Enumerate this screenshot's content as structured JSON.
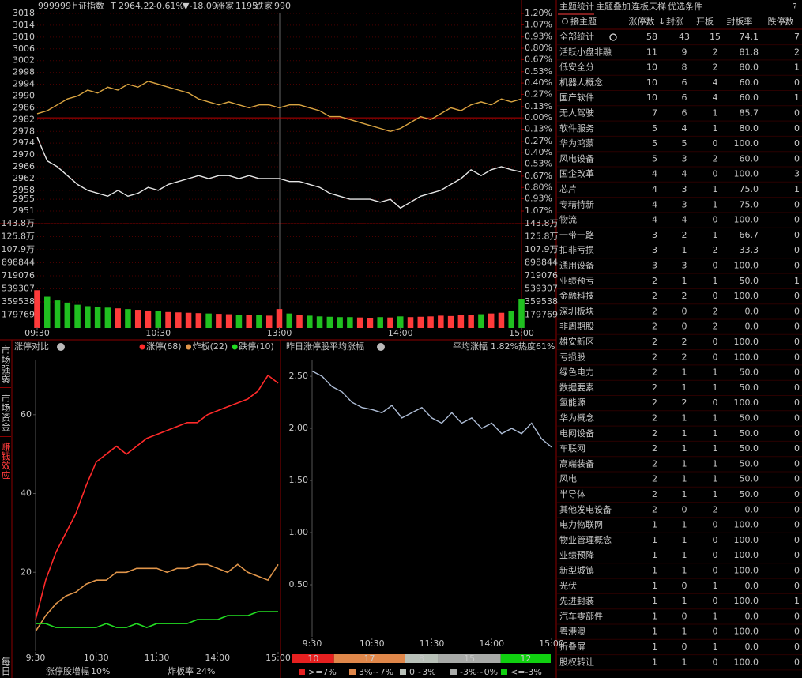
{
  "header": {
    "code": "999999",
    "name": "上证指数",
    "flag": "T",
    "price": "2964.22",
    "pct": "-0.61%",
    "change": "▼-18.09",
    "up_label": "涨家",
    "up_count": "1195",
    "down_label": "跌家",
    "down_count": "990"
  },
  "sidebar_tabs": [
    "市场强弱",
    "市场资金",
    "赚钱效应",
    "每日"
  ],
  "chart_data": [
    {
      "type": "line",
      "x": [
        0,
        5,
        10,
        15,
        20,
        25,
        30,
        35,
        40,
        45,
        50,
        55,
        60,
        65,
        70,
        75,
        80,
        85,
        90,
        95,
        100,
        105,
        110,
        115,
        120,
        125,
        130,
        135,
        140,
        145,
        150,
        155,
        160,
        165,
        170,
        175,
        180,
        185,
        190,
        195,
        200,
        205,
        210,
        215,
        220,
        225,
        230,
        235,
        240
      ],
      "xlim": [
        0,
        240
      ],
      "series": [
        {
          "color": "#e6e6e6",
          "values": [
            2976,
            2968,
            2966,
            2963,
            2960,
            2958,
            2957,
            2956,
            2958,
            2956,
            2957,
            2959,
            2958,
            2960,
            2961,
            2962,
            2963,
            2962,
            2963,
            2963,
            2962,
            2963,
            2962,
            2962,
            2962,
            2961,
            2961,
            2960,
            2959,
            2957,
            2956,
            2955,
            2955,
            2955,
            2954,
            2955,
            2952,
            2954,
            2956,
            2957,
            2958,
            2960,
            2962,
            2965,
            2963,
            2965,
            2966,
            2965,
            2964.22
          ]
        },
        {
          "color": "#d9a441",
          "values": [
            2984,
            2985,
            2987,
            2989,
            2990,
            2992,
            2991,
            2993,
            2992,
            2994,
            2993,
            2995,
            2994,
            2993,
            2992,
            2991,
            2989,
            2988,
            2987,
            2988,
            2987,
            2986,
            2987,
            2987,
            2986,
            2987,
            2987,
            2986,
            2985,
            2983,
            2983,
            2982,
            2981,
            2980,
            2979,
            2978,
            2979,
            2981,
            2983,
            2982,
            2984,
            2986,
            2985,
            2987,
            2988,
            2987,
            2989,
            2988,
            2989
          ]
        }
      ],
      "ylim": [
        2951,
        3018
      ],
      "yticks": [
        3018,
        3014,
        3010,
        3006,
        3002,
        2998,
        2994,
        2990,
        2986,
        2982,
        2978,
        2974,
        2970,
        2966,
        2962,
        2958,
        2955,
        2951
      ],
      "y2lim": [
        -1.07,
        1.2
      ],
      "y2ticks": [
        {
          "value": 1.2,
          "label": "1.20%"
        },
        {
          "value": 1.07,
          "label": "1.07%"
        },
        {
          "value": 0.93,
          "label": "0.93%"
        },
        {
          "value": 0.8,
          "label": "0.80%"
        },
        {
          "value": 0.67,
          "label": "0.67%"
        },
        {
          "value": 0.53,
          "label": "0.53%"
        },
        {
          "value": 0.4,
          "label": "0.40%"
        },
        {
          "value": 0.27,
          "label": "0.27%"
        },
        {
          "value": 0.13,
          "label": "0.13%"
        },
        {
          "value": 0,
          "label": "0.00%"
        },
        {
          "value": -0.13,
          "label": "0.13%"
        },
        {
          "value": -0.27,
          "label": "0.27%"
        },
        {
          "value": -0.4,
          "label": "0.40%"
        },
        {
          "value": -0.53,
          "label": "0.53%"
        },
        {
          "value": -0.67,
          "label": "0.67%"
        },
        {
          "value": -0.8,
          "label": "0.80%"
        },
        {
          "value": -0.93,
          "label": "0.93%"
        },
        {
          "value": -1.07,
          "label": "1.07%"
        }
      ],
      "grid": true
    },
    {
      "type": "bar",
      "x": [
        0,
        5,
        10,
        15,
        20,
        25,
        30,
        35,
        40,
        45,
        50,
        55,
        60,
        65,
        70,
        75,
        80,
        85,
        90,
        95,
        100,
        105,
        110,
        115,
        120,
        125,
        130,
        135,
        140,
        145,
        150,
        155,
        160,
        165,
        170,
        175,
        180,
        185,
        190,
        195,
        200,
        205,
        210,
        215,
        220,
        225,
        230,
        235,
        240
      ],
      "xlim": [
        0,
        240
      ],
      "xticks": [
        {
          "value": 0,
          "label": "09:30"
        },
        {
          "value": 60,
          "label": "10:30"
        },
        {
          "value": 120,
          "label": "13:00"
        },
        {
          "value": 180,
          "label": "14:00"
        },
        {
          "value": 240,
          "label": "15:00"
        }
      ],
      "values": [
        520000,
        430000,
        380000,
        350000,
        320000,
        300000,
        290000,
        280000,
        270000,
        260000,
        250000,
        240000,
        230000,
        220000,
        215000,
        210000,
        205000,
        200000,
        195000,
        190000,
        185000,
        180000,
        175000,
        170000,
        260000,
        200000,
        180000,
        170000,
        160000,
        155000,
        150000,
        150000,
        145000,
        140000,
        150000,
        145000,
        160000,
        150000,
        155000,
        160000,
        170000,
        165000,
        180000,
        175000,
        190000,
        200000,
        210000,
        230000,
        400000
      ],
      "up_color": "#ff3b3b",
      "down_color": "#20c020",
      "ylim": [
        0,
        1438000
      ],
      "yticks": [
        {
          "value": 1438000,
          "label": "143.8万"
        },
        {
          "value": 1258000,
          "label": "125.8万"
        },
        {
          "value": 1079000,
          "label": "107.9万"
        },
        898844,
        719076,
        539307,
        359538,
        179769
      ]
    },
    {
      "type": "line",
      "title": "涨停对比",
      "x": [
        0,
        10,
        20,
        30,
        40,
        50,
        60,
        70,
        80,
        90,
        100,
        110,
        120,
        130,
        140,
        150,
        160,
        170,
        180,
        190,
        200,
        210,
        220,
        230,
        240
      ],
      "xlim": [
        0,
        240
      ],
      "xticks": [
        {
          "value": 0,
          "label": "9:30"
        },
        {
          "value": 60,
          "label": "10:30"
        },
        {
          "value": 120,
          "label": "11:30"
        },
        {
          "value": 180,
          "label": "14:00"
        },
        {
          "value": 240,
          "label": "15:00"
        }
      ],
      "ylim": [
        0,
        74
      ],
      "yticks": [
        20,
        40,
        60
      ],
      "series": [
        {
          "name": "涨停(68)",
          "color": "#ff2a2a",
          "values": [
            8,
            18,
            25,
            30,
            35,
            42,
            48,
            50,
            52,
            50,
            52,
            54,
            55,
            56,
            57,
            58,
            58,
            60,
            61,
            62,
            63,
            64,
            66,
            70,
            68
          ]
        },
        {
          "name": "炸板(22)",
          "color": "#e0954a",
          "values": [
            5,
            9,
            12,
            14,
            15,
            17,
            18,
            18,
            20,
            20,
            21,
            21,
            21,
            20,
            21,
            21,
            22,
            22,
            21,
            20,
            22,
            20,
            19,
            18,
            22
          ]
        },
        {
          "name": "跌停(10)",
          "color": "#22dd22",
          "values": [
            7,
            7,
            6,
            6,
            6,
            6,
            6,
            7,
            6,
            6,
            7,
            6,
            7,
            7,
            7,
            7,
            8,
            8,
            8,
            9,
            9,
            9,
            10,
            10,
            10
          ]
        }
      ],
      "footer": [
        {
          "label": "涨停股增幅",
          "value": "10%"
        },
        {
          "label": "炸板率",
          "value": "24%"
        }
      ]
    },
    {
      "type": "line",
      "title": "昨日涨停股平均涨幅",
      "x": [
        0,
        10,
        20,
        30,
        40,
        50,
        60,
        70,
        80,
        90,
        100,
        110,
        120,
        130,
        140,
        150,
        160,
        170,
        180,
        190,
        200,
        210,
        220,
        230,
        240
      ],
      "xlim": [
        0,
        240
      ],
      "xticks": [
        {
          "value": 0,
          "label": "9:30"
        },
        {
          "value": 60,
          "label": "10:30"
        },
        {
          "value": 120,
          "label": "11:30"
        },
        {
          "value": 180,
          "label": "14:00"
        },
        {
          "value": 240,
          "label": "15:00"
        }
      ],
      "ylim": [
        0,
        2.66
      ],
      "yticks": [
        {
          "value": 2.5,
          "label": "2.50"
        },
        {
          "value": 2,
          "label": "2.00"
        },
        {
          "value": 1.5,
          "label": "1.50"
        },
        {
          "value": 1,
          "label": "1.00"
        },
        {
          "value": 0.5,
          "label": "0.50"
        }
      ],
      "series": [
        {
          "color": "#aebdd6",
          "values": [
            2.55,
            2.5,
            2.4,
            2.35,
            2.25,
            2.2,
            2.18,
            2.15,
            2.22,
            2.1,
            2.15,
            2.2,
            2.1,
            2.05,
            2.15,
            2.05,
            2.1,
            2,
            2.05,
            1.95,
            2,
            1.95,
            2.05,
            1.9,
            1.82
          ]
        }
      ],
      "avg_label": "平均涨幅",
      "avg_value": "1.82%",
      "heat": "热度61%",
      "distribution": {
        "values": [
          10,
          17,
          8,
          15,
          12
        ],
        "labels": [
          ">=7%",
          "3%~7%",
          "0~3%",
          "-3%~0%",
          "<=-3%"
        ],
        "colors": [
          "#e62020",
          "#e0874a",
          "#b8c0b8",
          "#a8aaa8",
          "#10d010"
        ]
      }
    }
  ],
  "table": {
    "tabs": [
      "主题统计",
      "主题叠加",
      "连板天梯",
      "优选条件",
      "?"
    ],
    "columns": [
      "接主题",
      "涨停数",
      "封涨",
      "开板",
      "封板率",
      "跌停数"
    ],
    "rows": [
      [
        "全部统计",
        "58",
        "43",
        "15",
        "74.1",
        "7"
      ],
      [
        "活跃小盘非融",
        "11",
        "9",
        "2",
        "81.8",
        "2"
      ],
      [
        "低安全分",
        "10",
        "8",
        "2",
        "80.0",
        "1"
      ],
      [
        "机器人概念",
        "10",
        "6",
        "4",
        "60.0",
        "0"
      ],
      [
        "国产软件",
        "10",
        "6",
        "4",
        "60.0",
        "1"
      ],
      [
        "无人驾驶",
        "7",
        "6",
        "1",
        "85.7",
        "0"
      ],
      [
        "软件服务",
        "5",
        "4",
        "1",
        "80.0",
        "0"
      ],
      [
        "华为鸿蒙",
        "5",
        "5",
        "0",
        "100.0",
        "0"
      ],
      [
        "风电设备",
        "5",
        "3",
        "2",
        "60.0",
        "0"
      ],
      [
        "国企改革",
        "4",
        "4",
        "0",
        "100.0",
        "3"
      ],
      [
        "芯片",
        "4",
        "3",
        "1",
        "75.0",
        "1"
      ],
      [
        "专精特新",
        "4",
        "3",
        "1",
        "75.0",
        "0"
      ],
      [
        "物流",
        "4",
        "4",
        "0",
        "100.0",
        "0"
      ],
      [
        "一带一路",
        "3",
        "2",
        "1",
        "66.7",
        "0"
      ],
      [
        "扣非亏损",
        "3",
        "1",
        "2",
        "33.3",
        "0"
      ],
      [
        "通用设备",
        "3",
        "3",
        "0",
        "100.0",
        "0"
      ],
      [
        "业绩预亏",
        "2",
        "1",
        "1",
        "50.0",
        "1"
      ],
      [
        "金融科技",
        "2",
        "2",
        "0",
        "100.0",
        "0"
      ],
      [
        "深圳板块",
        "2",
        "0",
        "2",
        "0.0",
        "0"
      ],
      [
        "非周期股",
        "2",
        "0",
        "2",
        "0.0",
        "0"
      ],
      [
        "雄安新区",
        "2",
        "2",
        "0",
        "100.0",
        "0"
      ],
      [
        "亏损股",
        "2",
        "2",
        "0",
        "100.0",
        "0"
      ],
      [
        "绿色电力",
        "2",
        "1",
        "1",
        "50.0",
        "0"
      ],
      [
        "数据要素",
        "2",
        "1",
        "1",
        "50.0",
        "0"
      ],
      [
        "氢能源",
        "2",
        "2",
        "0",
        "100.0",
        "0"
      ],
      [
        "华为概念",
        "2",
        "1",
        "1",
        "50.0",
        "0"
      ],
      [
        "电网设备",
        "2",
        "1",
        "1",
        "50.0",
        "0"
      ],
      [
        "车联网",
        "2",
        "1",
        "1",
        "50.0",
        "0"
      ],
      [
        "高端装备",
        "2",
        "1",
        "1",
        "50.0",
        "0"
      ],
      [
        "风电",
        "2",
        "1",
        "1",
        "50.0",
        "0"
      ],
      [
        "半导体",
        "2",
        "1",
        "1",
        "50.0",
        "0"
      ],
      [
        "其他发电设备",
        "2",
        "0",
        "2",
        "0.0",
        "0"
      ],
      [
        "电力物联网",
        "1",
        "1",
        "0",
        "100.0",
        "0"
      ],
      [
        "物业管理概念",
        "1",
        "1",
        "0",
        "100.0",
        "0"
      ],
      [
        "业绩预降",
        "1",
        "1",
        "0",
        "100.0",
        "0"
      ],
      [
        "新型城镇",
        "1",
        "1",
        "0",
        "100.0",
        "0"
      ],
      [
        "光伏",
        "1",
        "0",
        "1",
        "0.0",
        "0"
      ],
      [
        "先进封装",
        "1",
        "1",
        "0",
        "100.0",
        "1"
      ],
      [
        "汽车零部件",
        "1",
        "0",
        "1",
        "0.0",
        "0"
      ],
      [
        "粤港澳",
        "1",
        "1",
        "0",
        "100.0",
        "0"
      ],
      [
        "折叠屏",
        "1",
        "0",
        "1",
        "0.0",
        "0"
      ],
      [
        "股权转让",
        "1",
        "1",
        "0",
        "100.0",
        "0"
      ]
    ]
  }
}
